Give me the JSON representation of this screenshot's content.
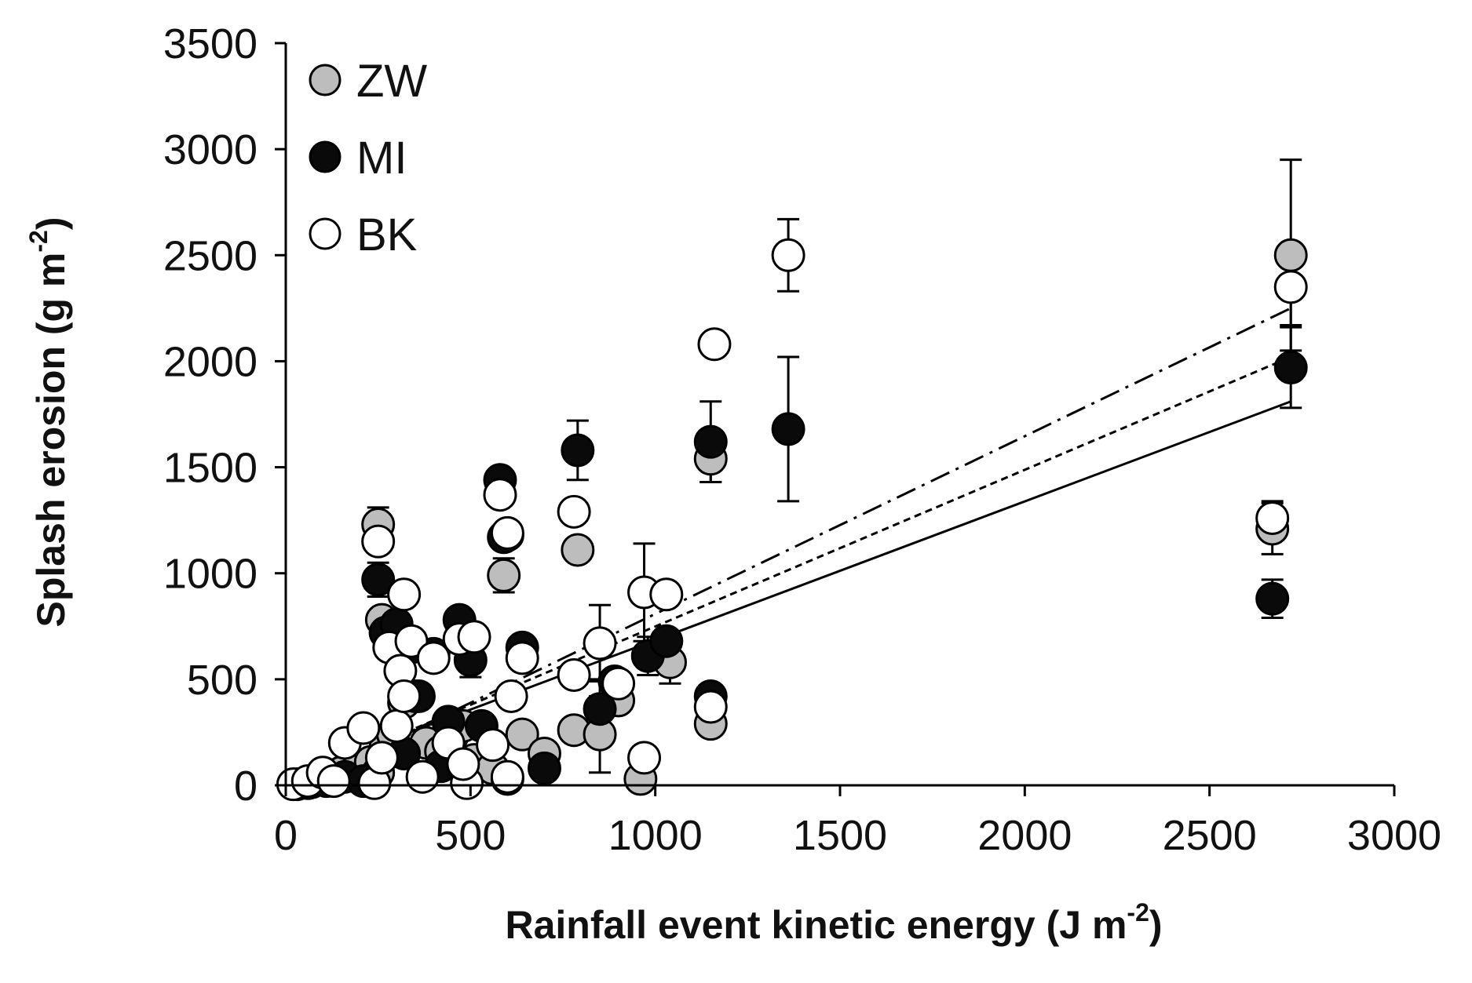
{
  "chart_data": {
    "type": "scatter",
    "title": "",
    "xlabel": "Rainfall event kinetic energy (J m",
    "xlabel_sup": "-2",
    "xlabel_close": ")",
    "ylabel": "Splash erosion (g m",
    "ylabel_sup": "-2",
    "ylabel_close": ")",
    "xlim": [
      0,
      3000
    ],
    "ylim": [
      0,
      3500
    ],
    "xticks": [
      0,
      500,
      1000,
      1500,
      2000,
      2500,
      3000
    ],
    "yticks": [
      0,
      500,
      1000,
      1500,
      2000,
      2500,
      3000,
      3500
    ],
    "xtick_labels": [
      "0",
      "500",
      "1000",
      "1500",
      "2000",
      "2500",
      "3000"
    ],
    "ytick_labels": [
      "0",
      "500",
      "1000",
      "1500",
      "2000",
      "2500",
      "3000",
      "3500"
    ],
    "legend_position": "top-left",
    "series": [
      {
        "name": "ZW",
        "color": "#bdbdbd",
        "points": [
          [
            30,
            5
          ],
          [
            70,
            15
          ],
          [
            110,
            30
          ],
          [
            150,
            60
          ],
          [
            190,
            70
          ],
          [
            230,
            110
          ],
          [
            250,
            60
          ],
          [
            270,
            180
          ],
          [
            290,
            240
          ],
          [
            320,
            390
          ],
          [
            350,
            420
          ],
          [
            380,
            200
          ],
          [
            420,
            160
          ],
          [
            450,
            230
          ],
          [
            480,
            280
          ],
          [
            510,
            120
          ],
          [
            560,
            80
          ],
          [
            600,
            30
          ],
          [
            640,
            240
          ],
          [
            700,
            150
          ],
          [
            780,
            260
          ],
          [
            850,
            240
          ],
          [
            900,
            400
          ],
          [
            960,
            30
          ],
          [
            1010,
            620
          ],
          [
            1040,
            580
          ],
          [
            1150,
            290
          ],
          [
            1150,
            1540
          ],
          [
            2670,
            1210
          ],
          [
            2720,
            2500
          ],
          [
            250,
            1230
          ],
          [
            260,
            780
          ],
          [
            590,
            990
          ],
          [
            600,
            1180
          ],
          [
            790,
            1110
          ]
        ],
        "errors": [
          [
            1150,
            1540,
            110
          ],
          [
            2720,
            2500,
            450
          ],
          [
            2670,
            1210,
            120
          ],
          [
            590,
            990,
            80
          ],
          [
            250,
            1230,
            80
          ],
          [
            1040,
            580,
            100
          ],
          [
            850,
            240,
            180
          ]
        ]
      },
      {
        "name": "MI",
        "color": "#0a0a0a",
        "points": [
          [
            60,
            10
          ],
          [
            110,
            20
          ],
          [
            160,
            40
          ],
          [
            210,
            20
          ],
          [
            250,
            970
          ],
          [
            270,
            720
          ],
          [
            300,
            760
          ],
          [
            340,
            650
          ],
          [
            360,
            420
          ],
          [
            400,
            620
          ],
          [
            440,
            300
          ],
          [
            470,
            780
          ],
          [
            500,
            590
          ],
          [
            530,
            280
          ],
          [
            580,
            1440
          ],
          [
            590,
            1170
          ],
          [
            640,
            650
          ],
          [
            700,
            80
          ],
          [
            790,
            1580
          ],
          [
            850,
            360
          ],
          [
            890,
            490
          ],
          [
            980,
            610
          ],
          [
            1030,
            680
          ],
          [
            1150,
            420
          ],
          [
            1150,
            1620
          ],
          [
            1360,
            1680
          ],
          [
            2670,
            880
          ],
          [
            2720,
            1970
          ],
          [
            320,
            150
          ],
          [
            420,
            90
          ]
        ],
        "errors": [
          [
            250,
            970,
            80
          ],
          [
            500,
            590,
            80
          ],
          [
            790,
            1580,
            140
          ],
          [
            980,
            610,
            90
          ],
          [
            1150,
            1620,
            190
          ],
          [
            1360,
            1680,
            340
          ],
          [
            2670,
            880,
            90
          ],
          [
            2720,
            1970,
            190
          ],
          [
            850,
            360,
            140
          ]
        ]
      },
      {
        "name": "BK",
        "color": "#ffffff",
        "points": [
          [
            20,
            5
          ],
          [
            60,
            20
          ],
          [
            100,
            60
          ],
          [
            130,
            20
          ],
          [
            160,
            200
          ],
          [
            210,
            270
          ],
          [
            240,
            10
          ],
          [
            260,
            130
          ],
          [
            280,
            650
          ],
          [
            300,
            280
          ],
          [
            310,
            540
          ],
          [
            320,
            900
          ],
          [
            340,
            680
          ],
          [
            370,
            40
          ],
          [
            400,
            600
          ],
          [
            440,
            200
          ],
          [
            470,
            690
          ],
          [
            490,
            10
          ],
          [
            510,
            700
          ],
          [
            560,
            190
          ],
          [
            600,
            40
          ],
          [
            610,
            420
          ],
          [
            640,
            600
          ],
          [
            780,
            520
          ],
          [
            780,
            1290
          ],
          [
            850,
            670
          ],
          [
            900,
            480
          ],
          [
            970,
            130
          ],
          [
            970,
            910
          ],
          [
            1030,
            900
          ],
          [
            1150,
            370
          ],
          [
            1160,
            2080
          ],
          [
            1360,
            2500
          ],
          [
            2670,
            1260
          ],
          [
            2720,
            2350
          ],
          [
            580,
            1370
          ],
          [
            600,
            1190
          ],
          [
            250,
            1150
          ],
          [
            320,
            420
          ],
          [
            480,
            100
          ]
        ],
        "errors": [
          [
            1360,
            2500,
            170
          ],
          [
            2670,
            1260,
            80
          ],
          [
            2720,
            2350,
            180
          ],
          [
            850,
            670,
            180
          ],
          [
            970,
            910,
            230
          ]
        ]
      }
    ],
    "trendlines": [
      {
        "name": "ZW",
        "style": "solid",
        "x": [
          0,
          2720
        ],
        "y": [
          30,
          1810
        ]
      },
      {
        "name": "MI",
        "style": "dashed",
        "x": [
          0,
          2720
        ],
        "y": [
          10,
          2020
        ]
      },
      {
        "name": "BK",
        "style": "dash-dot",
        "x": [
          0,
          2720
        ],
        "y": [
          -30,
          2250
        ]
      }
    ]
  }
}
